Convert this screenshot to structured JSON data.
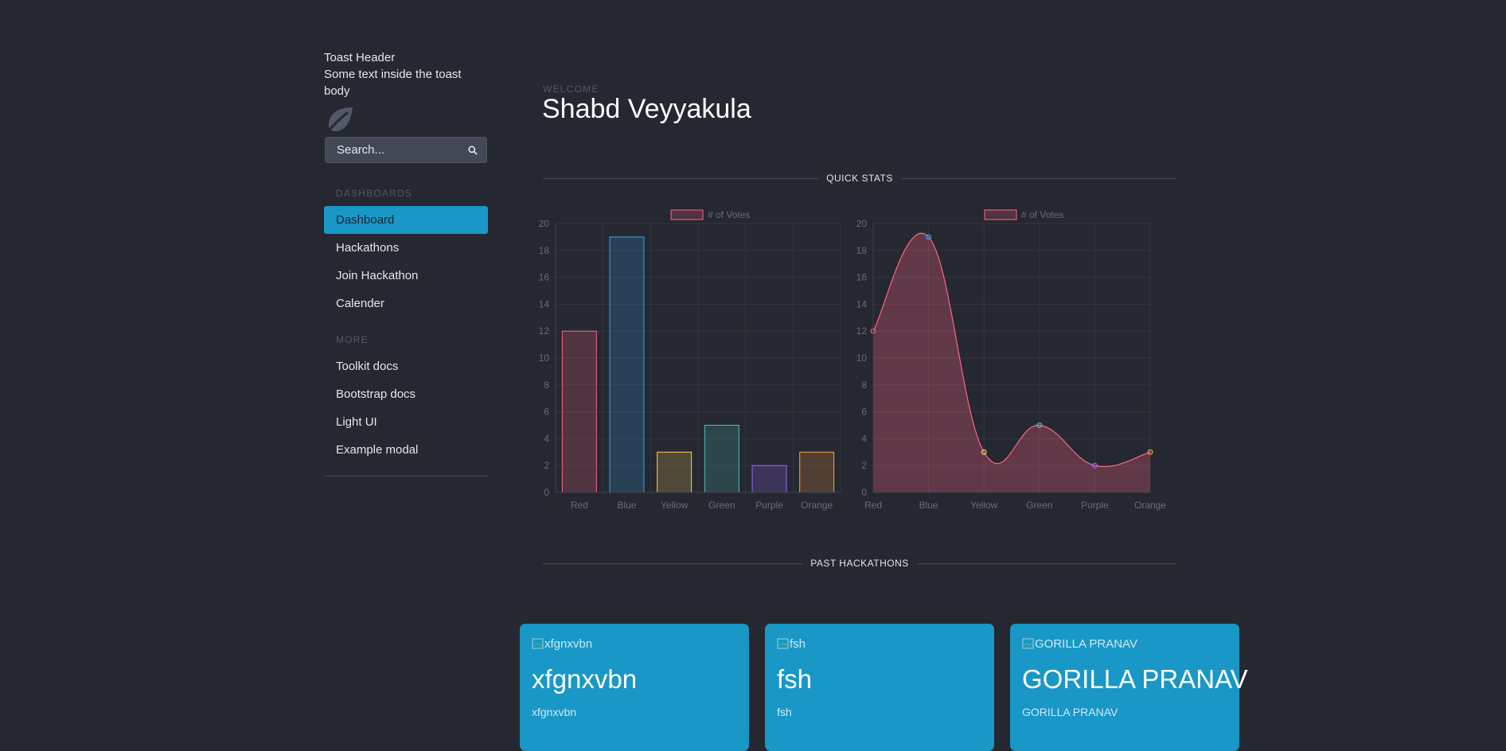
{
  "toast": {
    "header": "Toast Header",
    "body": "Some text inside the toast body"
  },
  "brand": {
    "icon": "leaf-icon"
  },
  "search": {
    "placeholder": "Search..."
  },
  "sidebar": {
    "sections": [
      {
        "label": "DASHBOARDS"
      },
      {
        "label": "MORE"
      }
    ],
    "items": [
      {
        "label": "Dashboard",
        "active": true
      },
      {
        "label": "Hackathons"
      },
      {
        "label": "Join Hackathon"
      },
      {
        "label": "Calender"
      },
      {
        "label": "Toolkit docs"
      },
      {
        "label": "Bootstrap docs"
      },
      {
        "label": "Light UI"
      },
      {
        "label": "Example modal"
      }
    ]
  },
  "header": {
    "eyebrow": "WELCOME",
    "title": "Shabd Veyyakula"
  },
  "sections": {
    "quick_stats": "QUICK STATS",
    "past_hackathons": "PAST HACKATHONS"
  },
  "colors": {
    "accent": "#1997c6",
    "background": "#252830",
    "red": "#ff6384",
    "blue": "#36a2eb",
    "yellow": "#ffce56",
    "green": "#4bc0c0",
    "purple": "#9966ff",
    "orange": "#ff9f40"
  },
  "chart_data": [
    {
      "type": "bar",
      "legend": "# of Votes",
      "legend_position": "top",
      "categories": [
        "Red",
        "Blue",
        "Yellow",
        "Green",
        "Purple",
        "Orange"
      ],
      "series": [
        {
          "name": "# of Votes",
          "values": [
            12,
            19,
            3,
            5,
            2,
            3
          ]
        }
      ],
      "ylim": [
        0,
        20
      ],
      "yticks": [
        0,
        2,
        4,
        6,
        8,
        10,
        12,
        14,
        16,
        18,
        20
      ],
      "grid": true,
      "bar_colors": [
        "#ff6384",
        "#36a2eb",
        "#ffce56",
        "#4bc0c0",
        "#9966ff",
        "#ff9f40"
      ]
    },
    {
      "type": "area",
      "legend": "# of Votes",
      "legend_position": "top",
      "categories": [
        "Red",
        "Blue",
        "Yellow",
        "Green",
        "Purple",
        "Orange"
      ],
      "series": [
        {
          "name": "# of Votes",
          "values": [
            12,
            19,
            3,
            5,
            2,
            3
          ]
        }
      ],
      "ylim": [
        0,
        20
      ],
      "yticks": [
        0,
        2,
        4,
        6,
        8,
        10,
        12,
        14,
        16,
        18,
        20
      ],
      "grid": true,
      "point_colors": [
        "#ff6384",
        "#36a2eb",
        "#ffce56",
        "#4bc0c0",
        "#9966ff",
        "#ff9f40"
      ]
    }
  ],
  "cards": [
    {
      "img_alt": "xfgnxvbn",
      "title": "xfgnxvbn",
      "text": "xfgnxvbn"
    },
    {
      "img_alt": "fsh",
      "title": "fsh",
      "text": "fsh"
    },
    {
      "img_alt": "GORILLA PRANAV",
      "title": "GORILLA PRANAV",
      "text": "GORILLA PRANAV"
    }
  ]
}
